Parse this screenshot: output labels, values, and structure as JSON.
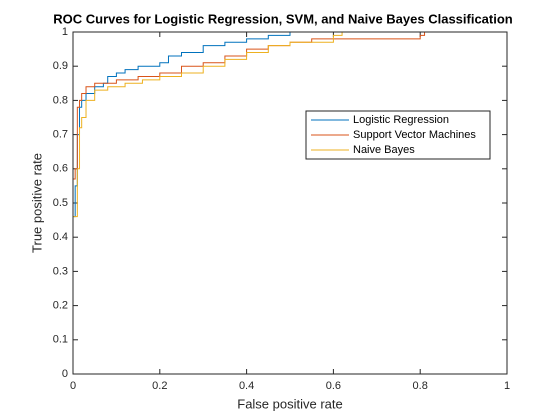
{
  "chart_data": {
    "type": "line",
    "step": true,
    "title": "ROC Curves for Logistic Regression, SVM, and Naive Bayes Classification",
    "xlabel": "False positive rate",
    "ylabel": "True positive rate",
    "xlim": [
      0,
      1
    ],
    "ylim": [
      0,
      1
    ],
    "xticks": [
      0,
      0.2,
      0.4,
      0.6,
      0.8,
      1
    ],
    "yticks": [
      0,
      0.1,
      0.2,
      0.3,
      0.4,
      0.5,
      0.6,
      0.7,
      0.8,
      0.9,
      1
    ],
    "series": [
      {
        "name": "Logistic Regression",
        "color": "#0072BD",
        "x": [
          0,
          0,
          0.005,
          0.01,
          0.015,
          0.02,
          0.03,
          0.05,
          0.07,
          0.08,
          0.1,
          0.12,
          0.15,
          0.2,
          0.22,
          0.25,
          0.3,
          0.35,
          0.4,
          0.45,
          0.5,
          1
        ],
        "values": [
          0,
          0.46,
          0.55,
          0.7,
          0.78,
          0.8,
          0.82,
          0.84,
          0.85,
          0.87,
          0.88,
          0.89,
          0.9,
          0.91,
          0.93,
          0.94,
          0.96,
          0.97,
          0.98,
          0.99,
          1,
          1
        ]
      },
      {
        "name": "Support Vector Machines",
        "color": "#D95319",
        "x": [
          0,
          0,
          0.005,
          0.01,
          0.015,
          0.02,
          0.03,
          0.05,
          0.1,
          0.15,
          0.2,
          0.25,
          0.3,
          0.35,
          0.4,
          0.45,
          0.5,
          0.55,
          0.8,
          0.81,
          1
        ],
        "values": [
          0,
          0.57,
          0.6,
          0.78,
          0.8,
          0.82,
          0.84,
          0.85,
          0.86,
          0.87,
          0.88,
          0.9,
          0.91,
          0.93,
          0.95,
          0.96,
          0.97,
          0.98,
          0.99,
          1,
          1
        ]
      },
      {
        "name": "Naive Bayes",
        "color": "#EDB120",
        "x": [
          0,
          0,
          0.01,
          0.015,
          0.02,
          0.03,
          0.05,
          0.08,
          0.12,
          0.16,
          0.2,
          0.25,
          0.3,
          0.35,
          0.4,
          0.45,
          0.5,
          0.6,
          0.62,
          1
        ],
        "values": [
          0,
          0.46,
          0.6,
          0.72,
          0.75,
          0.8,
          0.83,
          0.84,
          0.85,
          0.86,
          0.87,
          0.88,
          0.9,
          0.92,
          0.94,
          0.96,
          0.97,
          0.99,
          1,
          1
        ]
      }
    ]
  }
}
